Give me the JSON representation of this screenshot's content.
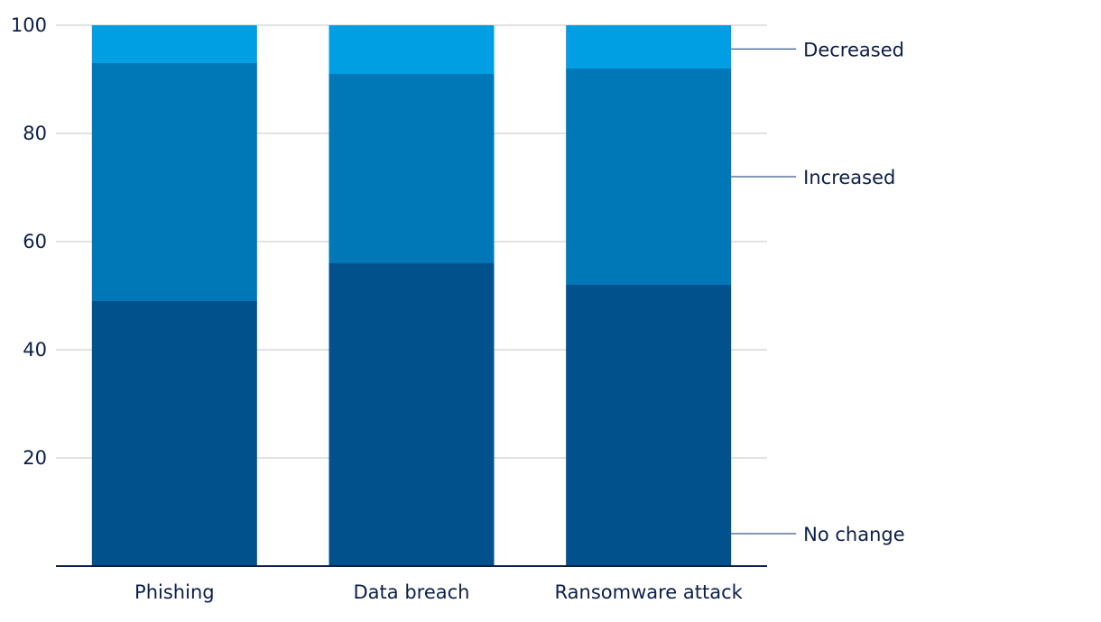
{
  "chart_data": {
    "type": "bar",
    "stacked": true,
    "categories": [
      "Phishing",
      "Data breach",
      "Ransomware attack"
    ],
    "series": [
      {
        "name": "No change",
        "values": [
          49,
          56,
          52
        ],
        "color": "#00518c"
      },
      {
        "name": "Increased",
        "values": [
          44,
          35,
          40
        ],
        "color": "#0077b6"
      },
      {
        "name": "Decreased",
        "values": [
          7,
          9,
          8
        ],
        "color": "#009fe3"
      }
    ],
    "ylim": [
      0,
      100
    ],
    "yticks": [
      20,
      40,
      60,
      80,
      100
    ],
    "grid": true,
    "legend": "right",
    "colors": {
      "axis": "#0b1f4b",
      "text": "#0b1f4b",
      "grid": "#d0d0d0",
      "leader": "#3a5a8a"
    }
  }
}
